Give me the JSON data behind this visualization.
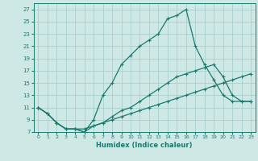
{
  "xlabel": "Humidex (Indice chaleur)",
  "background_color": "#cde8e5",
  "grid_color": "#aacfcc",
  "line_color": "#1a7a6e",
  "xlim": [
    -0.5,
    23.5
  ],
  "ylim": [
    7,
    28
  ],
  "yticks": [
    7,
    9,
    11,
    13,
    15,
    17,
    19,
    21,
    23,
    25,
    27
  ],
  "xticks": [
    0,
    1,
    2,
    3,
    4,
    5,
    6,
    7,
    8,
    9,
    10,
    11,
    12,
    13,
    14,
    15,
    16,
    17,
    18,
    19,
    20,
    21,
    22,
    23
  ],
  "line_peak_x": [
    0,
    1,
    2,
    3,
    4,
    5,
    6,
    7,
    8,
    9,
    10,
    11,
    12,
    13,
    14,
    15,
    16,
    17,
    18,
    19,
    20,
    21,
    22,
    23
  ],
  "line_peak_y": [
    11,
    10,
    8.5,
    7.5,
    7.5,
    7,
    9,
    13,
    15,
    18,
    19.5,
    21,
    22,
    23,
    25.5,
    26,
    27,
    21,
    18,
    15.5,
    13,
    12,
    12,
    12
  ],
  "line_mid_x": [
    0,
    1,
    2,
    3,
    4,
    5,
    6,
    7,
    8,
    9,
    10,
    11,
    12,
    13,
    14,
    15,
    16,
    17,
    18,
    19,
    20,
    21,
    22,
    23
  ],
  "line_mid_y": [
    11,
    10,
    8.5,
    7.5,
    7.5,
    7,
    8,
    8.5,
    9.5,
    10.5,
    11,
    12,
    13,
    14,
    15,
    16,
    16.5,
    17,
    17.5,
    18,
    16,
    13,
    12,
    12
  ],
  "line_low_x": [
    0,
    1,
    2,
    3,
    4,
    5,
    6,
    7,
    8,
    9,
    10,
    11,
    12,
    13,
    14,
    15,
    16,
    17,
    18,
    19,
    20,
    21,
    22,
    23
  ],
  "line_low_y": [
    11,
    10,
    8.5,
    7.5,
    7.5,
    7.5,
    8,
    8.5,
    9,
    9.5,
    10,
    10.5,
    11,
    11.5,
    12,
    12.5,
    13,
    13.5,
    14,
    14.5,
    15,
    15.5,
    16,
    16.5
  ]
}
